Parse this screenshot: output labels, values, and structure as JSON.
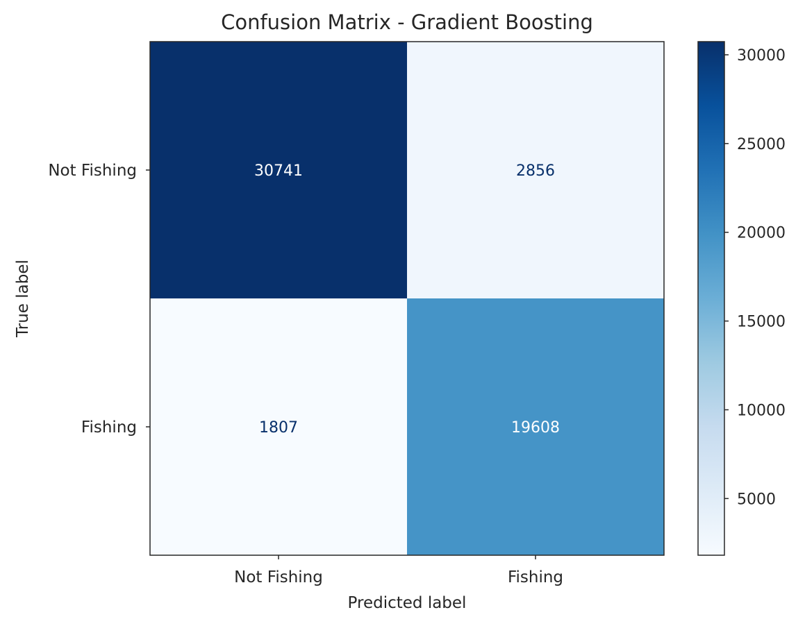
{
  "chart_data": {
    "type": "heatmap",
    "title": "Confusion Matrix - Gradient Boosting",
    "xlabel": "Predicted label",
    "ylabel": "True label",
    "x_categories": [
      "Not Fishing",
      "Fishing"
    ],
    "y_categories": [
      "Not Fishing",
      "Fishing"
    ],
    "values": [
      [
        30741,
        2856
      ],
      [
        1807,
        19608
      ]
    ],
    "colormap": "Blues",
    "colorbar": {
      "range": [
        1807,
        30741
      ],
      "ticks": [
        5000,
        10000,
        15000,
        20000,
        25000,
        30000
      ],
      "tick_labels": [
        "5000",
        "10000",
        "15000",
        "20000",
        "25000",
        "30000"
      ]
    },
    "grid": false
  }
}
